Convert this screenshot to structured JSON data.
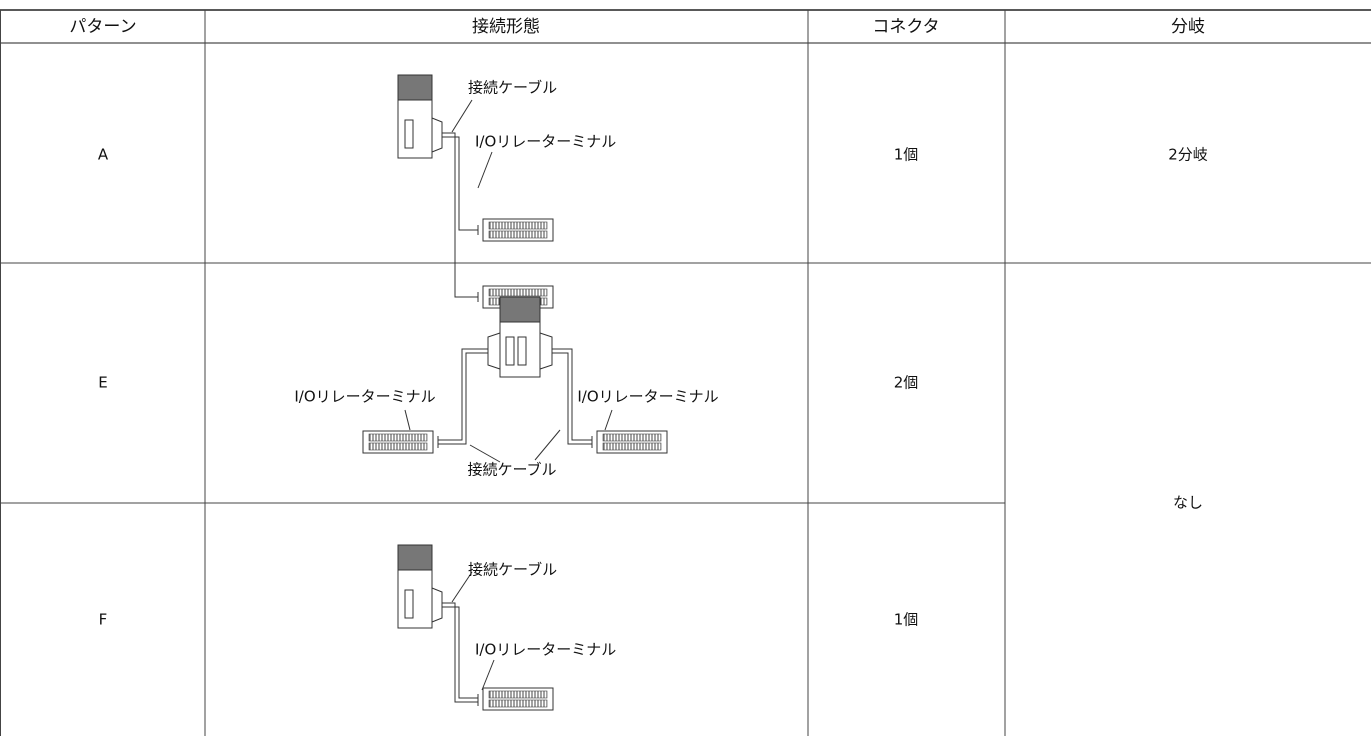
{
  "table": {
    "headers": [
      "パターン",
      "接続形態",
      "コネクタ",
      "分岐"
    ],
    "rows": [
      {
        "pattern": "A",
        "diagram": {
          "cable": "接続ケーブル",
          "terminal": "I/Oリレーターミナル"
        },
        "connector": "1個",
        "branch": "2分岐"
      },
      {
        "pattern": "E",
        "diagram": {
          "cable": "接続ケーブル",
          "terminal_left": "I/Oリレーターミナル",
          "terminal_right": "I/Oリレーターミナル"
        },
        "connector": "2個",
        "branch": "なし"
      },
      {
        "pattern": "F",
        "diagram": {
          "cable": "接続ケーブル",
          "terminal": "I/Oリレーターミナル"
        },
        "connector": "1個"
      }
    ]
  }
}
